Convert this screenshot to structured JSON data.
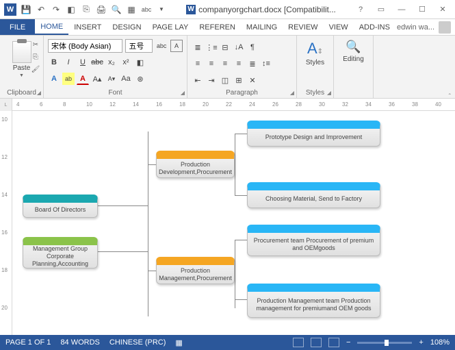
{
  "titlebar": {
    "doc_title": "companyorgchart.docx [Compatibilit..."
  },
  "tabs": {
    "file": "FILE",
    "home": "HOME",
    "insert": "INSERT",
    "design": "DESIGN",
    "pagelayout": "PAGE LAY",
    "references": "REFEREN",
    "mailings": "MAILING",
    "review": "REVIEW",
    "view": "VIEW",
    "addins": "ADD-INS",
    "user": "edwin wa..."
  },
  "ribbon": {
    "clipboard": {
      "paste": "Paste",
      "label": "Clipboard"
    },
    "font": {
      "name": "宋体 (Body Asian)",
      "size": "五号",
      "label": "Font"
    },
    "paragraph": {
      "label": "Paragraph"
    },
    "styles": {
      "label": "Styles"
    },
    "editing": {
      "label": "Editing"
    }
  },
  "ruler": {
    "h": [
      "4",
      "6",
      "8",
      "10",
      "12",
      "14",
      "16",
      "18",
      "20",
      "22",
      "24",
      "26",
      "28",
      "30",
      "32",
      "34",
      "36",
      "38",
      "40"
    ],
    "v": [
      "10",
      "12",
      "14",
      "16",
      "18",
      "20"
    ]
  },
  "chart": {
    "nodes": {
      "board": "Board Of Directors",
      "mgmt": "Management Group Corporate Planning,Accounting",
      "proddev": "Production Development,Procurement",
      "prodmgmt": "Production Management,Procurement",
      "proto": "Prototype Design and Improvement",
      "material": "Choosing Material, Send to Factory",
      "procteam": "Procurement team Procurement of premium and OEMgoods",
      "pmteam": "Production Management team Production management for premiumand OEM goods"
    }
  },
  "status": {
    "page": "PAGE 1 OF 1",
    "words": "84 WORDS",
    "lang": "CHINESE (PRC)",
    "zoom": "108%"
  }
}
